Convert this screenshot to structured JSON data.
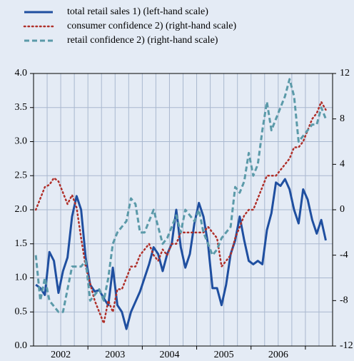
{
  "chart_data": {
    "type": "line",
    "x_labels": [
      "2002",
      "2003",
      "2004",
      "2005",
      "2006"
    ],
    "ylim": [
      0,
      4
    ],
    "yticks": [
      {
        "value": 0,
        "label": "0.0"
      },
      0.5,
      {
        "value": 1,
        "label": "1.0"
      },
      1.5,
      {
        "value": 2,
        "label": "2.0"
      },
      2.5,
      {
        "value": 3,
        "label": "3.0"
      },
      3.5,
      {
        "value": 4,
        "label": "4.0"
      }
    ],
    "y2lim": [
      -12,
      12
    ],
    "y2ticks": [
      -12,
      -8,
      -4,
      0,
      4,
      8,
      12
    ],
    "grid": true,
    "series": [
      {
        "name": "total retail sales 1) (left-hand scale)",
        "color": "#1f4fa0",
        "style": "solid",
        "axis": "y",
        "values": [
          0.9,
          0.85,
          0.75,
          1.38,
          1.25,
          0.78,
          1.1,
          1.3,
          1.9,
          2.2,
          2.0,
          1.3,
          0.9,
          0.8,
          0.82,
          0.7,
          0.6,
          1.15,
          0.6,
          0.5,
          0.25,
          0.5,
          0.65,
          0.8,
          1.0,
          1.2,
          1.45,
          1.35,
          1.1,
          1.35,
          1.5,
          2.0,
          1.45,
          1.15,
          1.35,
          1.8,
          2.1,
          1.9,
          1.5,
          0.85,
          0.85,
          0.6,
          0.9,
          1.35,
          1.55,
          1.9,
          1.55,
          1.25,
          1.2,
          1.25,
          1.2,
          1.7,
          1.95,
          2.4,
          2.35,
          2.45,
          2.3,
          2.0,
          1.8,
          2.3,
          2.15,
          1.85,
          1.65,
          1.85,
          1.55
        ]
      },
      {
        "name": "consumer confidence 2) (right-hand scale)",
        "color": "#b0302a",
        "style": "dotted",
        "axis": "y2",
        "values": [
          0,
          1,
          2,
          2.2,
          2.8,
          2.5,
          1.5,
          0.5,
          1.3,
          0.2,
          -2.5,
          -5,
          -6.5,
          -8,
          -9,
          -10,
          -8,
          -9,
          -7,
          -7,
          -6,
          -5,
          -5,
          -4,
          -3.5,
          -3,
          -4,
          -4.5,
          -3.5,
          -4,
          -3,
          -3,
          -2,
          -2,
          -2,
          -2,
          -2,
          -2,
          -1.5,
          -2,
          -2.5,
          -5,
          -4.5,
          -4,
          -2.5,
          -1.5,
          -0.5,
          0,
          0,
          1,
          2,
          3,
          3,
          3,
          3.5,
          4,
          4.5,
          5.5,
          5.5,
          6,
          7,
          8,
          8.5,
          9.5,
          8.8
        ]
      },
      {
        "name": "retail confidence 2) (right-hand scale)",
        "color": "#5b9aa9",
        "style": "dashed",
        "axis": "y2",
        "values": [
          -4,
          -8,
          -6,
          -8,
          -8.5,
          -9,
          -9,
          -7,
          -5,
          -5,
          -5,
          -4.5,
          -8,
          -7.5,
          -7,
          -8,
          -6,
          -3,
          -2,
          -1.5,
          -1,
          1,
          0.5,
          -2,
          -2,
          -1,
          0,
          -1.5,
          -3,
          -2.5,
          -1.5,
          -0.5,
          -2,
          0,
          -0.5,
          -1,
          0,
          -2,
          -3,
          -4,
          -3.5,
          -2.5,
          -2,
          -1.5,
          2,
          1.5,
          2.5,
          5,
          3,
          4,
          7,
          9.5,
          7,
          8,
          9,
          10,
          11.5,
          10,
          6,
          6.5,
          7,
          7.5,
          7.5,
          9,
          8
        ]
      }
    ]
  }
}
